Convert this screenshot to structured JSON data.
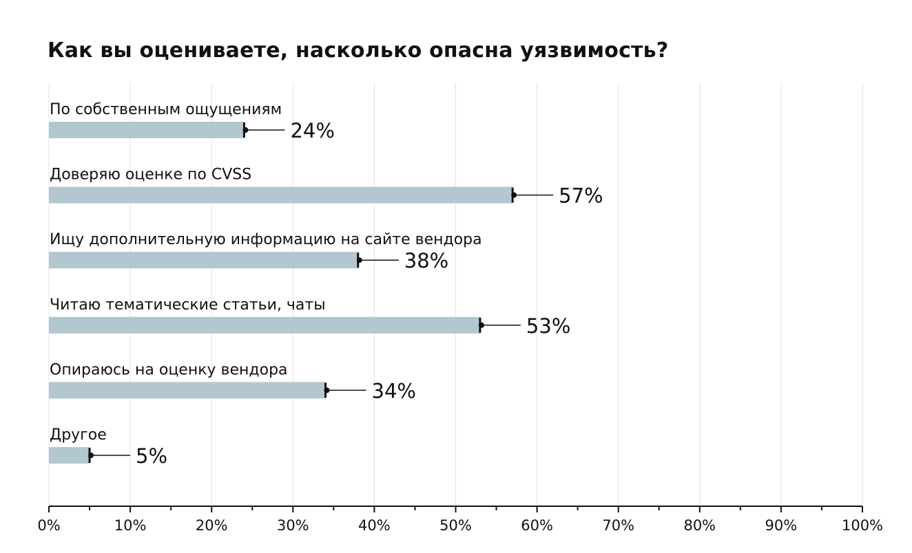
{
  "chart_data": {
    "type": "bar",
    "orientation": "horizontal",
    "title": "Как вы оцениваете, насколько опасна уязвимость?",
    "categories": [
      "По собственным ощущениям",
      "Доверяю оценке по CVSS",
      "Ищу дополнительную информацию на сайте вендора",
      "Читаю тематические статьи, чаты",
      "Опираюсь на оценку вендора",
      "Другое"
    ],
    "values": [
      24,
      57,
      38,
      53,
      34,
      5
    ],
    "value_labels": [
      "24%",
      "57%",
      "38%",
      "53%",
      "34%",
      "5%"
    ],
    "x_ticks": [
      "0%",
      "10%",
      "20%",
      "30%",
      "40%",
      "50%",
      "60%",
      "70%",
      "80%",
      "90%",
      "100%"
    ],
    "xlim": [
      0,
      100
    ],
    "xlabel": "",
    "ylabel": "",
    "grid": true,
    "legend": "none",
    "colors": {
      "bar": "#b3c7d0",
      "grid": "#e2e2e2",
      "axis": "#111111",
      "text": "#111111"
    }
  }
}
